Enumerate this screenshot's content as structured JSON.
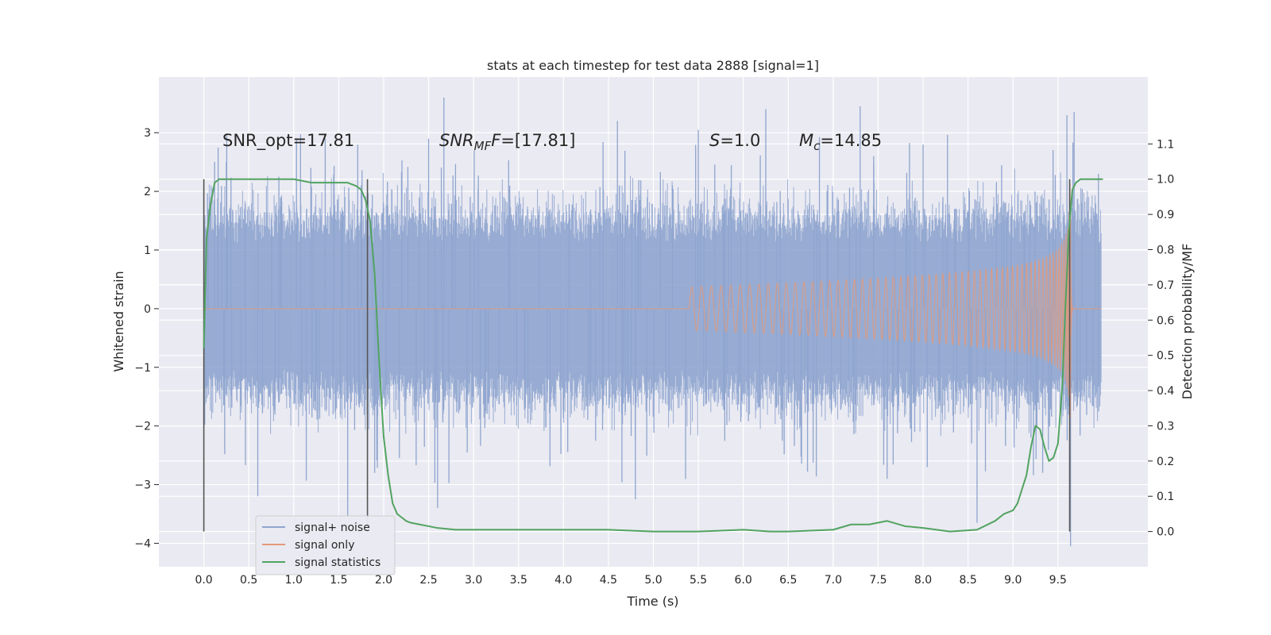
{
  "chart_data": {
    "type": "line",
    "title": "stats at each timestep for test data 2888 [signal=1]",
    "xlabel": "Time (s)",
    "ylabel": "Whitened strain",
    "y2label": "Detection probability/MF",
    "xlim": [
      -0.5,
      10.5
    ],
    "ylim": [
      -4.4,
      3.95
    ],
    "y2lim": [
      -0.1,
      1.29
    ],
    "xticks": [
      "0.0",
      "0.5",
      "1.0",
      "1.5",
      "2.0",
      "2.5",
      "3.0",
      "3.5",
      "4.0",
      "4.5",
      "5.0",
      "5.5",
      "6.0",
      "6.5",
      "7.0",
      "7.5",
      "8.0",
      "8.5",
      "9.0",
      "9.5"
    ],
    "yticks": [
      "−4",
      "−3",
      "−2",
      "−1",
      "0",
      "1",
      "2",
      "3"
    ],
    "y2ticks": [
      "0.0",
      "0.1",
      "0.2",
      "0.3",
      "0.4",
      "0.5",
      "0.6",
      "0.7",
      "0.8",
      "0.9",
      "1.0",
      "1.1"
    ],
    "grid": true,
    "legend_position": "lower-left",
    "annotations": {
      "snr_opt": "SNR_opt=17.81",
      "snr_mf": {
        "base": "SNR",
        "sub": "MF",
        "rest": "=[17.81]"
      },
      "s": {
        "sym": "S",
        "rest": "=1.0"
      },
      "mc": {
        "base": "M",
        "sub": "c",
        "rest": "=14.85"
      }
    },
    "vertical_lines_x": [
      0.0,
      1.82,
      9.63
    ],
    "noise_envelope": {
      "x_start": 0.0,
      "x_end": 9.98,
      "typical_max": 1.55,
      "typical_min": -1.45
    },
    "noise_spikes": [
      [
        0.25,
        2.5
      ],
      [
        0.6,
        -3.2
      ],
      [
        1.35,
        2.9
      ],
      [
        1.6,
        -3.55
      ],
      [
        2.5,
        2.9
      ],
      [
        2.6,
        -3.4
      ],
      [
        2.67,
        3.6
      ],
      [
        4.8,
        -3.25
      ],
      [
        4.6,
        3.2
      ],
      [
        5.5,
        3.05
      ],
      [
        6.25,
        3.4
      ],
      [
        7.3,
        3.45
      ],
      [
        7.6,
        -2.9
      ],
      [
        8.0,
        2.8
      ],
      [
        8.6,
        -3.65
      ],
      [
        9.2,
        -2.2
      ],
      [
        9.33,
        -2.8
      ],
      [
        9.6,
        3.3
      ],
      [
        9.64,
        -4.05
      ],
      [
        9.68,
        3.35
      ],
      [
        9.95,
        2.3
      ],
      [
        0.05,
        1.7
      ],
      [
        1.9,
        -2.8
      ]
    ],
    "series": [
      {
        "name": "signal+ noise",
        "color": "#8fa5cf"
      },
      {
        "name": "signal only",
        "color": "#e39979",
        "chirp": {
          "t_start": 5.4,
          "t_merge": 9.64,
          "t_end": 9.98,
          "peak_amplitude": 2.15
        }
      },
      {
        "name": "signal statistics",
        "color": "#52a360",
        "axis": "right",
        "x": [
          0.0,
          0.03,
          0.07,
          0.12,
          0.17,
          0.25,
          0.4,
          0.6,
          0.8,
          1.0,
          1.2,
          1.4,
          1.5,
          1.6,
          1.7,
          1.75,
          1.8,
          1.85,
          1.9,
          1.95,
          2.0,
          2.05,
          2.1,
          2.15,
          2.2,
          2.25,
          2.3,
          2.4,
          2.5,
          2.6,
          2.8,
          3.0,
          3.5,
          4.0,
          4.5,
          5.0,
          5.5,
          6.0,
          6.3,
          6.5,
          7.0,
          7.2,
          7.4,
          7.6,
          7.8,
          8.0,
          8.3,
          8.6,
          8.8,
          8.9,
          9.0,
          9.05,
          9.1,
          9.15,
          9.2,
          9.25,
          9.3,
          9.35,
          9.4,
          9.45,
          9.5,
          9.55,
          9.58,
          9.62,
          9.66,
          9.7,
          9.75,
          9.8,
          9.85,
          9.9,
          9.95,
          10.0
        ],
        "values": [
          0.52,
          0.83,
          0.92,
          0.99,
          1.0,
          1.0,
          1.0,
          1.0,
          1.0,
          1.0,
          0.99,
          0.99,
          0.99,
          0.99,
          0.98,
          0.97,
          0.94,
          0.88,
          0.73,
          0.48,
          0.27,
          0.16,
          0.08,
          0.05,
          0.04,
          0.03,
          0.025,
          0.02,
          0.015,
          0.01,
          0.005,
          0.005,
          0.005,
          0.005,
          0.005,
          0.0,
          0.0,
          0.005,
          0.0,
          0.0,
          0.005,
          0.02,
          0.02,
          0.03,
          0.015,
          0.01,
          0.0,
          0.005,
          0.03,
          0.05,
          0.06,
          0.08,
          0.12,
          0.16,
          0.24,
          0.3,
          0.29,
          0.24,
          0.2,
          0.21,
          0.25,
          0.42,
          0.62,
          0.85,
          0.97,
          0.99,
          1.0,
          1.0,
          1.0,
          1.0,
          1.0,
          1.0
        ]
      }
    ]
  }
}
